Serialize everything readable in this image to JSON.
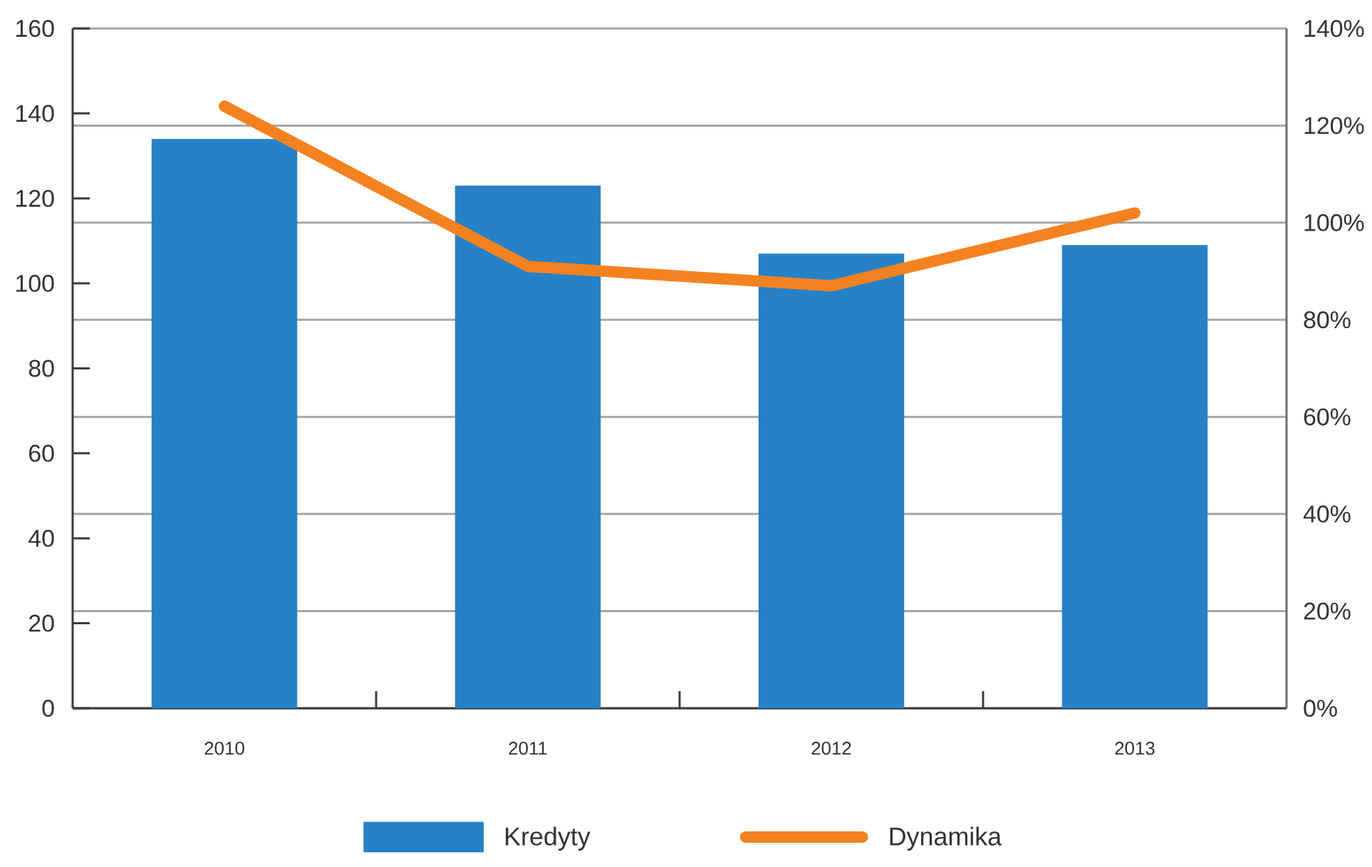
{
  "chart_data": {
    "type": "bar",
    "categories": [
      "2010",
      "2011",
      "2012",
      "2013"
    ],
    "series": [
      {
        "name": "Kredyty",
        "color": "#2781c6",
        "values": [
          134,
          123,
          107,
          109
        ]
      },
      {
        "name": "Dynamika",
        "type": "line",
        "axis": "y2",
        "color": "#f58220",
        "values": [
          124,
          91,
          87,
          102
        ]
      }
    ],
    "ylim": [
      0,
      160
    ],
    "yticks": [
      0,
      20,
      40,
      60,
      80,
      100,
      120,
      140,
      160
    ],
    "y2lim": [
      0,
      140
    ],
    "y2ticks": [
      {
        "value": 0,
        "label": "0%"
      },
      {
        "value": 20,
        "label": "20%"
      },
      {
        "value": 40,
        "label": "40%"
      },
      {
        "value": 60,
        "label": "60%"
      },
      {
        "value": 80,
        "label": "80%"
      },
      {
        "value": 100,
        "label": "100%"
      },
      {
        "value": 120,
        "label": "120%"
      },
      {
        "value": 140,
        "label": "140%"
      }
    ],
    "grid": "y2",
    "legend": "bottom"
  }
}
